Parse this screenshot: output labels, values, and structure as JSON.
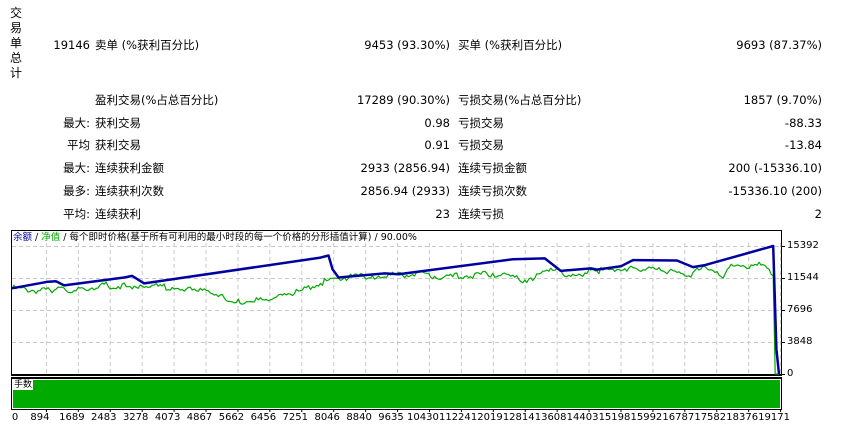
{
  "summary": {
    "section_label_chars": [
      "交",
      "易",
      "单",
      "总",
      "计"
    ],
    "total_trades": "19146",
    "short_label": "卖单 (%获利百分比)",
    "short_value": "9453 (93.30%)",
    "long_label": "买单 (%获利百分比)",
    "long_value": "9693 (87.37%)",
    "profit_trades_label": "盈利交易(%占总百分比)",
    "profit_trades_value": "17289 (90.30%)",
    "loss_trades_label": "亏损交易(%占总百分比)",
    "loss_trades_value": "1857 (9.70%)"
  },
  "stats": [
    {
      "prefix": "最大:",
      "left_label": "获利交易",
      "left_value": "0.98",
      "right_label": "亏损交易",
      "right_value": "-88.33"
    },
    {
      "prefix": "平均",
      "left_label": "获利交易",
      "left_value": "0.91",
      "right_label": "亏损交易",
      "right_value": "-13.84"
    },
    {
      "prefix": "最大:",
      "left_label": "连续获利金额",
      "left_value": "2933 (2856.94)",
      "right_label": "连续亏损金额",
      "right_value": "200 (-15336.10)"
    },
    {
      "prefix": "最多:",
      "left_label": "连续获利次数",
      "left_value": "2856.94 (2933)",
      "right_label": "连续亏损次数",
      "right_value": "-15336.10 (200)"
    },
    {
      "prefix": "平均:",
      "left_label": "连续获利",
      "left_value": "23",
      "right_label": "连续亏损",
      "right_value": "2"
    }
  ],
  "chart_header": {
    "balance_label": "余额",
    "sep1": " / ",
    "equity_label": "净值",
    "sep2": " / ",
    "model_text": "每个即时价格(基于所有可利用的最小时段的每一个价格的分形插值计算)",
    "sep3": " / ",
    "quality": "90.00%"
  },
  "volume_pane": {
    "label": "手数"
  },
  "colors": {
    "balance": "#0000a0",
    "equity": "#00aa00",
    "volume": "#00aa00",
    "grid": "#c8c8c8"
  },
  "chart_data": {
    "type": "line",
    "title": "余额 / 净值 / 每个即时价格(基于所有可利用的最小时段的每一个价格的分形插值计算) / 90.00%",
    "xlabel": "",
    "ylabel": "",
    "y_ticks": [
      "15392",
      "11544",
      "7696",
      "3848",
      "0"
    ],
    "x_ticks": [
      "0",
      "894",
      "1689",
      "2483",
      "3278",
      "4073",
      "4867",
      "5662",
      "6456",
      "7251",
      "8046",
      "8840",
      "9635",
      "10430",
      "11224",
      "12019",
      "12814",
      "13608",
      "14403",
      "15198",
      "15992",
      "16787",
      "17582",
      "18376",
      "19171"
    ],
    "ylim": [
      0,
      15392
    ],
    "xlim": [
      0,
      19146
    ],
    "grid": true,
    "series": [
      {
        "name": "余额",
        "x": [
          0,
          900,
          1100,
          1300,
          2800,
          3000,
          3300,
          7700,
          7900,
          8000,
          8150,
          9300,
          9650,
          12500,
          13300,
          13700,
          14450,
          14600,
          15200,
          15500,
          16600,
          17000,
          17300,
          19000,
          19080,
          19146
        ],
        "values": [
          10300,
          11100,
          11150,
          10650,
          11600,
          11800,
          10900,
          14000,
          14250,
          12600,
          11600,
          12100,
          12000,
          13800,
          13900,
          12400,
          12700,
          12550,
          12950,
          13700,
          13650,
          12850,
          13100,
          15392,
          3000,
          0
        ]
      },
      {
        "name": "净值",
        "x": [
          0,
          700,
          1100,
          1500,
          2200,
          2900,
          3200,
          4000,
          4600,
          5200,
          5600,
          6300,
          6700,
          7200,
          7700,
          8050,
          9000,
          10000,
          11000,
          12000,
          12800,
          13400,
          14000,
          14600,
          15500,
          16200,
          16900,
          17300,
          17700,
          18000,
          18400,
          18700,
          19000,
          19050,
          19146
        ],
        "values": [
          10300,
          10000,
          10200,
          9800,
          10700,
          10500,
          10700,
          10400,
          10000,
          9500,
          8600,
          8900,
          9600,
          10000,
          10900,
          11550,
          11800,
          11950,
          11700,
          12100,
          11300,
          12350,
          12000,
          12400,
          12800,
          12450,
          11800,
          12900,
          11700,
          13000,
          12700,
          13100,
          11800,
          0,
          0
        ]
      }
    ]
  }
}
